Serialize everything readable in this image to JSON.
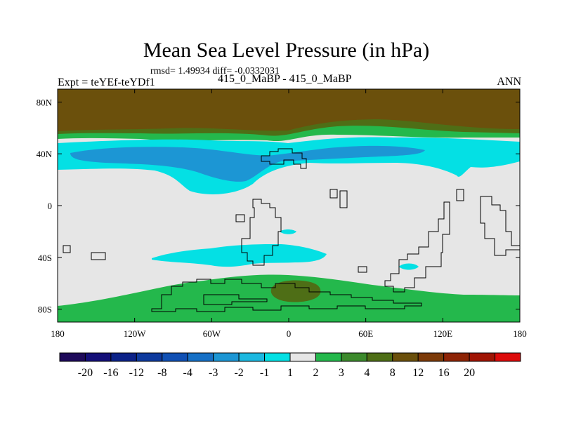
{
  "chart_data": {
    "type": "contour-map",
    "title": "Mean Sea Level Pressure (in hPa)",
    "stats": "rmsd= 1.49934 diff= -0.0332031",
    "left_label": "Expt = teYEf-teYDf1",
    "center_label": "415_0_MaBP - 415_0_MaBP",
    "right_label": "ANN",
    "x_ticks": [
      {
        "value": -180,
        "label": "180"
      },
      {
        "value": -120,
        "label": "120W"
      },
      {
        "value": -60,
        "label": "60W"
      },
      {
        "value": 0,
        "label": "0"
      },
      {
        "value": 60,
        "label": "60E"
      },
      {
        "value": 120,
        "label": "120E"
      },
      {
        "value": 180,
        "label": "180"
      }
    ],
    "y_ticks": [
      {
        "value": 80,
        "label": "80N"
      },
      {
        "value": 40,
        "label": "40N"
      },
      {
        "value": 0,
        "label": "0"
      },
      {
        "value": -40,
        "label": "40S"
      },
      {
        "value": -80,
        "label": "80S"
      }
    ],
    "xlim": [
      -180,
      180
    ],
    "ylim": [
      -90,
      90
    ],
    "colorbar": {
      "labels": [
        "-20",
        "-16",
        "-12",
        "-8",
        "-4",
        "-3",
        "-2",
        "-1",
        "1",
        "2",
        "3",
        "4",
        "8",
        "12",
        "16",
        "20"
      ],
      "colors": [
        "#1e0a5a",
        "#140f78",
        "#0c2288",
        "#0e3a9e",
        "#1050b4",
        "#1670c6",
        "#1c96d4",
        "#1cb8e0",
        "#04e0e4",
        "#e6e6e6",
        "#24b84c",
        "#3c8a2c",
        "#4e6e16",
        "#6b500c",
        "#7c3a08",
        "#8e2406",
        "#a01404",
        "#dc0a0a"
      ]
    }
  }
}
